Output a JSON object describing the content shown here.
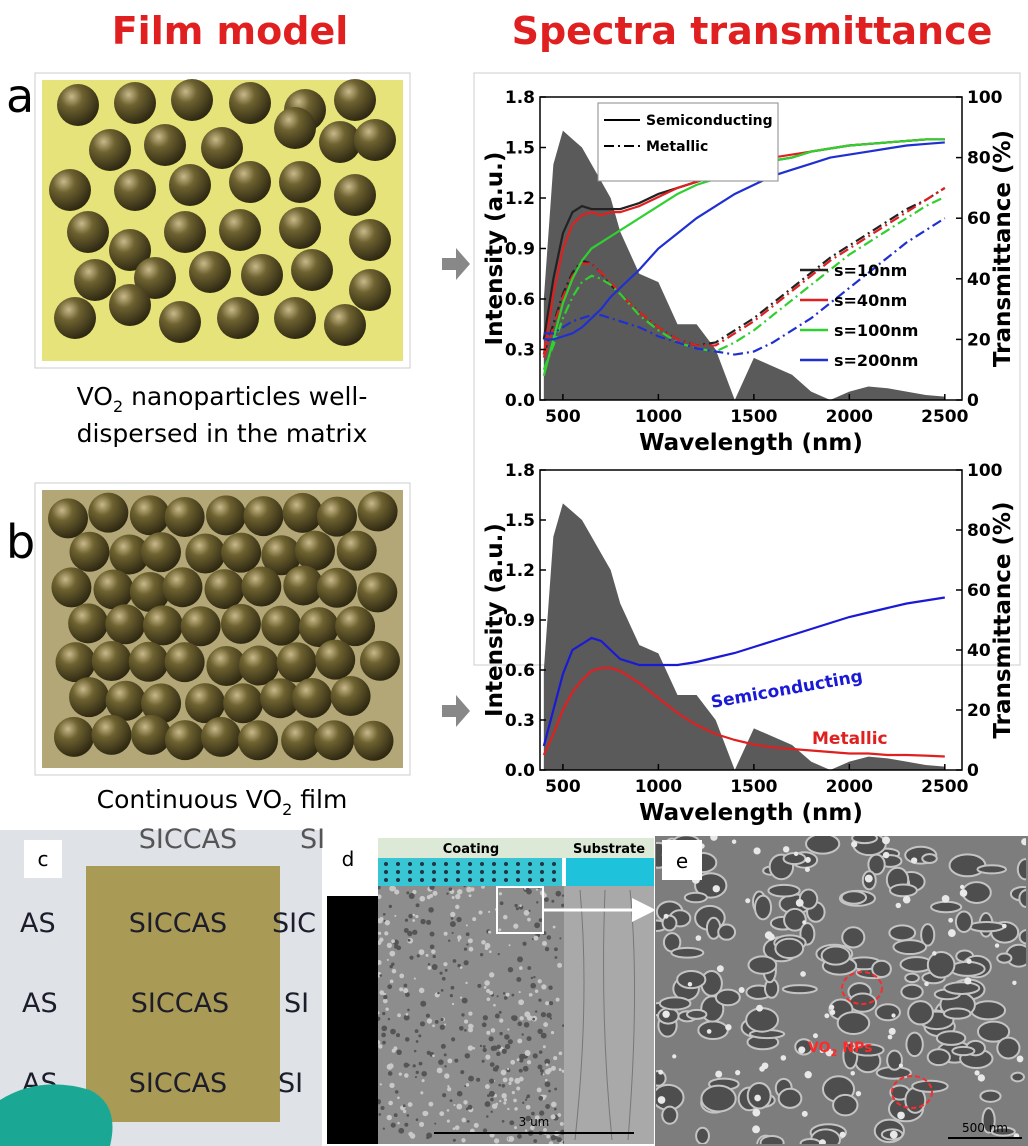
{
  "header": {
    "left": "Film model",
    "right": "Spectra transmittance"
  },
  "panel_labels": [
    "a",
    "b",
    "c",
    "d",
    "e"
  ],
  "caption_a": {
    "line1": [
      "VO",
      "2",
      " nanoparticles well-"
    ],
    "line2": "dispersed in the matrix"
  },
  "caption_b": [
    "Continuous VO",
    "2",
    " film"
  ],
  "photo_c": {
    "texts": [
      "SICCAS",
      "SI",
      "AS",
      "SICCAS",
      "SIC",
      "AS",
      "SICCAS",
      "SI",
      "AS",
      "SICCAS",
      "SI"
    ]
  },
  "sem_d": {
    "coating": "Coating",
    "substrate": "Substrate",
    "scale": "3 um"
  },
  "sem_e": {
    "annotation": [
      "VO",
      "2",
      " NPs"
    ],
    "scale": "500 nm"
  },
  "chart_data": [
    {
      "type": "line",
      "x_label": "Wavelength (nm)",
      "y_label": "Intensity (a.u.)",
      "y2_label": "Transmittance (%)",
      "xlim": [
        380,
        2590
      ],
      "ylim": [
        0,
        1.8
      ],
      "y2lim": [
        0,
        100
      ],
      "xticks": [
        500,
        1000,
        1500,
        2000,
        2500
      ],
      "yticks": [
        {
          "value": 0,
          "label": "0.0"
        },
        0.3,
        0.6,
        0.9,
        1.2,
        1.5,
        1.8
      ],
      "y2ticks": [
        0,
        20,
        40,
        60,
        80,
        100
      ],
      "x": [
        400,
        450,
        500,
        550,
        600,
        650,
        700,
        750,
        800,
        900,
        1000,
        1100,
        1200,
        1300,
        1400,
        1500,
        1600,
        1700,
        1800,
        1900,
        2000,
        2100,
        2200,
        2300,
        2400,
        2500
      ],
      "spectrum": {
        "color": "#5a5a5a",
        "values": [
          0.6,
          1.4,
          1.6,
          1.55,
          1.5,
          1.4,
          1.3,
          1.2,
          1.0,
          0.75,
          0.7,
          0.45,
          0.45,
          0.3,
          0,
          0.25,
          0.2,
          0.15,
          0.05,
          0,
          0.05,
          0.08,
          0.07,
          0.05,
          0.03,
          0.02
        ]
      },
      "line_styles": [
        {
          "name": "Semiconducting",
          "dash": "none"
        },
        {
          "name": "Metallic",
          "dash": "10 4 2 4"
        }
      ],
      "series": [
        {
          "name": "s=10nm",
          "color": "#222222",
          "axis": "y2",
          "semiconducting": [
            20,
            40,
            55,
            62,
            64,
            63,
            63,
            63,
            63,
            65,
            68,
            70,
            72,
            74,
            76,
            78,
            79,
            80,
            82,
            83,
            84,
            84.5,
            85,
            85.5,
            86,
            86
          ],
          "metallic": [
            15,
            25,
            35,
            42,
            46,
            45,
            42,
            38,
            35,
            29,
            24,
            20,
            18,
            19,
            23,
            27,
            32,
            37,
            42,
            47,
            51,
            55,
            59,
            63,
            66,
            70
          ]
        },
        {
          "name": "s=40nm",
          "color": "#e02020",
          "axis": "y2",
          "semiconducting": [
            15,
            35,
            50,
            58,
            61,
            62,
            61,
            62,
            62,
            64,
            67,
            70,
            72,
            74,
            76,
            78,
            80,
            81,
            82,
            83,
            84,
            84.5,
            85,
            85.5,
            86,
            86
          ],
          "metallic": [
            14,
            24,
            34,
            41,
            45,
            45,
            42,
            39,
            35,
            29,
            24,
            20,
            18,
            18,
            22,
            26,
            31,
            36,
            41,
            46,
            50,
            54,
            58,
            62,
            66,
            70
          ]
        },
        {
          "name": "s=100nm",
          "color": "#30d030",
          "axis": "y2",
          "semiconducting": [
            8,
            20,
            32,
            40,
            46,
            50,
            52,
            54,
            56,
            60,
            64,
            68,
            71,
            73,
            75,
            77,
            79,
            80,
            82,
            83,
            84,
            84.5,
            85,
            85.5,
            86,
            86
          ],
          "metallic": [
            10,
            18,
            27,
            34,
            39,
            41,
            40,
            38,
            35,
            28,
            23,
            19,
            17,
            16,
            19,
            23,
            28,
            33,
            38,
            43,
            48,
            52,
            56,
            60,
            64,
            67
          ]
        },
        {
          "name": "s=200nm",
          "color": "#2030d0",
          "axis": "y2",
          "semiconducting": [
            20,
            20,
            21,
            22,
            24,
            27,
            30,
            34,
            37,
            43,
            50,
            55,
            60,
            64,
            68,
            71,
            74,
            76,
            78,
            80,
            81,
            82,
            83,
            84,
            84.5,
            85
          ],
          "metallic": [
            22,
            22,
            24,
            26,
            27,
            28,
            28,
            27,
            26,
            24,
            21,
            19,
            17,
            16,
            15,
            16,
            19,
            23,
            27,
            32,
            37,
            42,
            47,
            52,
            56,
            60
          ]
        }
      ]
    },
    {
      "type": "line",
      "x_label": "Wavelength (nm)",
      "y_label": "Intensity (a.u.)",
      "y2_label": "Transmittance (%)",
      "xlim": [
        380,
        2590
      ],
      "ylim": [
        0,
        1.8
      ],
      "y2lim": [
        0,
        100
      ],
      "xticks": [
        500,
        1000,
        1500,
        2000,
        2500
      ],
      "yticks": [
        {
          "value": 0,
          "label": "0.0"
        },
        0.3,
        0.6,
        0.9,
        1.2,
        1.5,
        1.8
      ],
      "y2ticks": [
        0,
        20,
        40,
        60,
        80,
        100
      ],
      "x": [
        400,
        450,
        500,
        550,
        600,
        650,
        700,
        750,
        800,
        900,
        1000,
        1100,
        1200,
        1300,
        1400,
        1500,
        1600,
        1700,
        1800,
        1900,
        2000,
        2100,
        2200,
        2300,
        2400,
        2500
      ],
      "spectrum": {
        "color": "#5a5a5a",
        "values": [
          0.6,
          1.4,
          1.6,
          1.55,
          1.5,
          1.4,
          1.3,
          1.2,
          1.0,
          0.75,
          0.7,
          0.45,
          0.45,
          0.3,
          0,
          0.25,
          0.2,
          0.15,
          0.05,
          0,
          0.05,
          0.08,
          0.07,
          0.05,
          0.03,
          0.02
        ]
      },
      "series": [
        {
          "name": "Semiconducting",
          "color": "#1a1ad6",
          "axis": "y2",
          "values": [
            8,
            20,
            32,
            40,
            42,
            44,
            43,
            40,
            37,
            35,
            35,
            35,
            36,
            37.5,
            39,
            41,
            43,
            45,
            47,
            49,
            51,
            52.5,
            54,
            55.5,
            56.5,
            57.5
          ]
        },
        {
          "name": "Metallic",
          "color": "#e02020",
          "axis": "y2",
          "values": [
            5,
            12,
            20,
            26,
            30,
            33,
            34,
            34,
            33,
            29,
            24,
            19,
            15,
            12,
            10,
            8.5,
            7.5,
            7,
            6.5,
            6,
            5.5,
            5.5,
            5,
            5,
            4.8,
            4.5
          ]
        }
      ]
    }
  ]
}
